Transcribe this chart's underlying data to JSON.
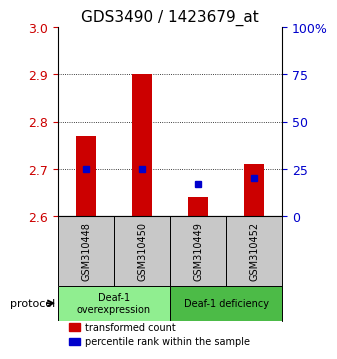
{
  "title": "GDS3490 / 1423679_at",
  "samples": [
    "GSM310448",
    "GSM310450",
    "GSM310449",
    "GSM310452"
  ],
  "transformed_counts": [
    2.77,
    2.9,
    2.64,
    2.71
  ],
  "percentile_ranks": [
    25,
    25,
    17,
    20
  ],
  "ylim_left": [
    2.6,
    3.0
  ],
  "ylim_right": [
    0,
    100
  ],
  "yticks_left": [
    2.6,
    2.7,
    2.8,
    2.9,
    3.0
  ],
  "yticks_right": [
    0,
    25,
    50,
    75,
    100
  ],
  "ytick_labels_right": [
    "0",
    "25",
    "50",
    "75",
    "100%"
  ],
  "groups": [
    {
      "label": "Deaf-1\noverexpression",
      "samples": [
        0,
        1
      ],
      "color": "#90EE90"
    },
    {
      "label": "Deaf-1 deficiency",
      "samples": [
        2,
        3
      ],
      "color": "#4CBB47"
    }
  ],
  "bar_color_red": "#CC0000",
  "bar_color_blue": "#0000CC",
  "bar_width": 0.35,
  "protocol_label": "protocol",
  "legend_red": "transformed count",
  "legend_blue": "percentile rank within the sample",
  "bg_color_samples": "#C8C8C8",
  "title_fontsize": 11,
  "tick_fontsize": 9,
  "label_fontsize": 8
}
